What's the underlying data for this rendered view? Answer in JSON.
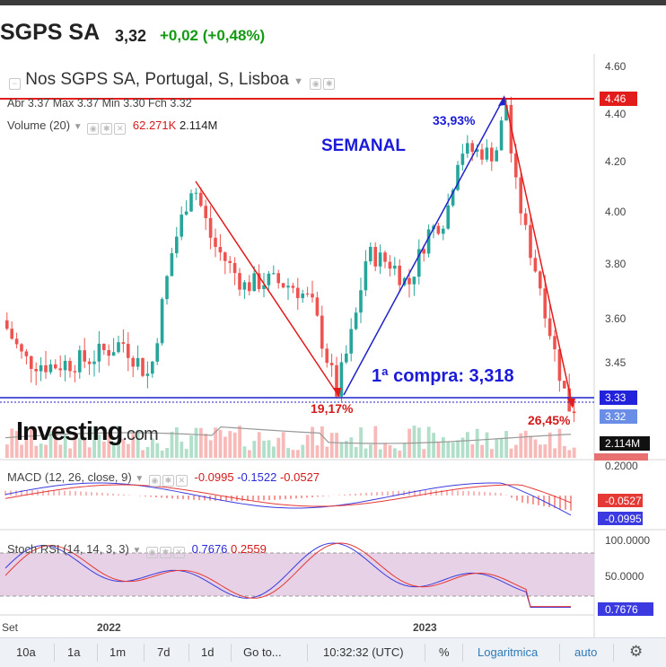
{
  "header": {
    "symbol": "SGPS SA",
    "price": "3,32",
    "change": "+0,02 (+0,48%)"
  },
  "chart": {
    "title": "Nos SGPS SA, Portugal, S, Lisboa",
    "ohlc": "Abr 3.37  Max 3.37  Min 3.30  Fch 3.32",
    "volume_label": "Volume (20)",
    "volume_ma": "62.271K",
    "volume_val": "2.114M",
    "price_axis_ticks": [
      "4.60",
      "4.40",
      "4.20",
      "4.00",
      "3.80",
      "3.60",
      "3.45"
    ],
    "tag_high": "4.46",
    "tag_ref": "3.33",
    "tag_last": "3.32",
    "tag_volume": "2.114M",
    "tag_volume_ma": "62.271K",
    "x_labels": [
      "Set",
      "2022",
      "2023"
    ],
    "annotations": {
      "weekly": "SEMANAL",
      "rise": "33,93%",
      "low_drop": "19,17%",
      "purchase": "1ª compra: 3,318",
      "last_drop": "26,45%"
    },
    "logo_text": "Investing",
    "logo_suffix": ".com",
    "colors": {
      "up": "#26a69a",
      "down": "#ef5350",
      "red_line": "#e21b1b",
      "blue_line": "#1f22c8"
    }
  },
  "macd": {
    "label": "MACD (12, 26, close, 9)",
    "v1": "-0.0995",
    "v2": "-0.1522",
    "v3": "-0.0527",
    "axis_top": "0.2000",
    "tag1": "-0.0527",
    "tag2": "-0.0995"
  },
  "stoch": {
    "label": "Stoch RSI (14, 14, 3, 3)",
    "k": "0.7676",
    "d": "0.2559",
    "axis": [
      "100.0000",
      "50.0000"
    ],
    "tag": "0.7676"
  },
  "bottom": {
    "ranges": [
      "10a",
      "1a",
      "1m",
      "7d",
      "1d"
    ],
    "goto": "Go to...",
    "time": "10:32:32 (UTC)",
    "pct": "%",
    "log": "Logaritmica",
    "auto": "auto",
    "settings_icon": "gear-icon"
  }
}
